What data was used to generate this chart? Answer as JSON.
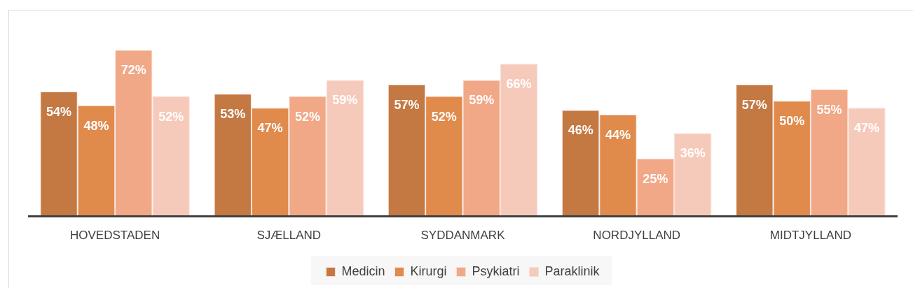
{
  "chart_data": {
    "type": "bar",
    "categories": [
      "HOVEDSTADEN",
      "SJÆLLAND",
      "SYDDANMARK",
      "NORDJYLLAND",
      "MIDTJYLLAND"
    ],
    "series": [
      {
        "name": "Medicin",
        "color": "#c47842",
        "values": [
          54,
          53,
          57,
          46,
          57
        ],
        "value_labels": [
          "54%",
          "53%",
          "57%",
          "46%",
          "57%"
        ]
      },
      {
        "name": "Kirurgi",
        "color": "#e08a4c",
        "values": [
          48,
          47,
          52,
          44,
          50
        ],
        "value_labels": [
          "48%",
          "47%",
          "52%",
          "44%",
          "50%"
        ]
      },
      {
        "name": "Psykiatri",
        "color": "#f1a886",
        "values": [
          72,
          52,
          59,
          25,
          55
        ],
        "value_labels": [
          "72%",
          "52%",
          "59%",
          "25%",
          "55%"
        ]
      },
      {
        "name": "Paraklinik",
        "color": "#f6cabb",
        "values": [
          52,
          59,
          66,
          36,
          47
        ],
        "value_labels": [
          "52%",
          "59%",
          "66%",
          "36%",
          "47%"
        ]
      }
    ],
    "tick_labels": "x",
    "grid": false,
    "legend": "bottom"
  }
}
